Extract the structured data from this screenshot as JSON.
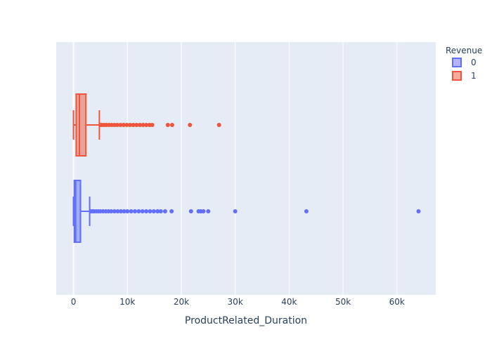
{
  "chart_data": {
    "type": "box",
    "orientation": "horizontal",
    "title": "",
    "xlabel": "ProductRelated_Duration",
    "ylabel": "",
    "xlim": [
      -3200,
      67200
    ],
    "xticks": [
      {
        "value": 0,
        "label": "0"
      },
      {
        "value": 10000,
        "label": "10k"
      },
      {
        "value": 20000,
        "label": "20k"
      },
      {
        "value": 30000,
        "label": "30k"
      },
      {
        "value": 40000,
        "label": "40k"
      },
      {
        "value": 50000,
        "label": "50k"
      },
      {
        "value": 60000,
        "label": "60k"
      }
    ],
    "grid": true,
    "legend": {
      "title": "Revenue",
      "placement": "top-right"
    },
    "series": [
      {
        "name": "0",
        "color": "#636efa",
        "fill": "rgba(99,110,250,0.5)",
        "min": 0,
        "q1": 150,
        "median": 400,
        "q3": 1300,
        "max": 3000,
        "outliers": [
          3200,
          3500,
          3800,
          4200,
          4600,
          5000,
          5500,
          6000,
          6500,
          7000,
          7600,
          8200,
          8800,
          9400,
          10000,
          10700,
          11400,
          12100,
          12800,
          13500,
          14200,
          14900,
          15600,
          16200,
          17000,
          18200,
          21800,
          23200,
          23600,
          24100,
          25000,
          30000,
          43200,
          64000
        ]
      },
      {
        "name": "1",
        "color": "#ef553b",
        "fill": "rgba(239,85,59,0.5)",
        "min": 0,
        "q1": 500,
        "median": 1100,
        "q3": 2300,
        "max": 4800,
        "outliers": [
          5000,
          5300,
          5700,
          6100,
          6600,
          7100,
          7600,
          8100,
          8700,
          9300,
          9900,
          10500,
          11100,
          11700,
          12300,
          12900,
          13500,
          14100,
          14600,
          17500,
          18300,
          21600,
          27000
        ]
      }
    ]
  }
}
